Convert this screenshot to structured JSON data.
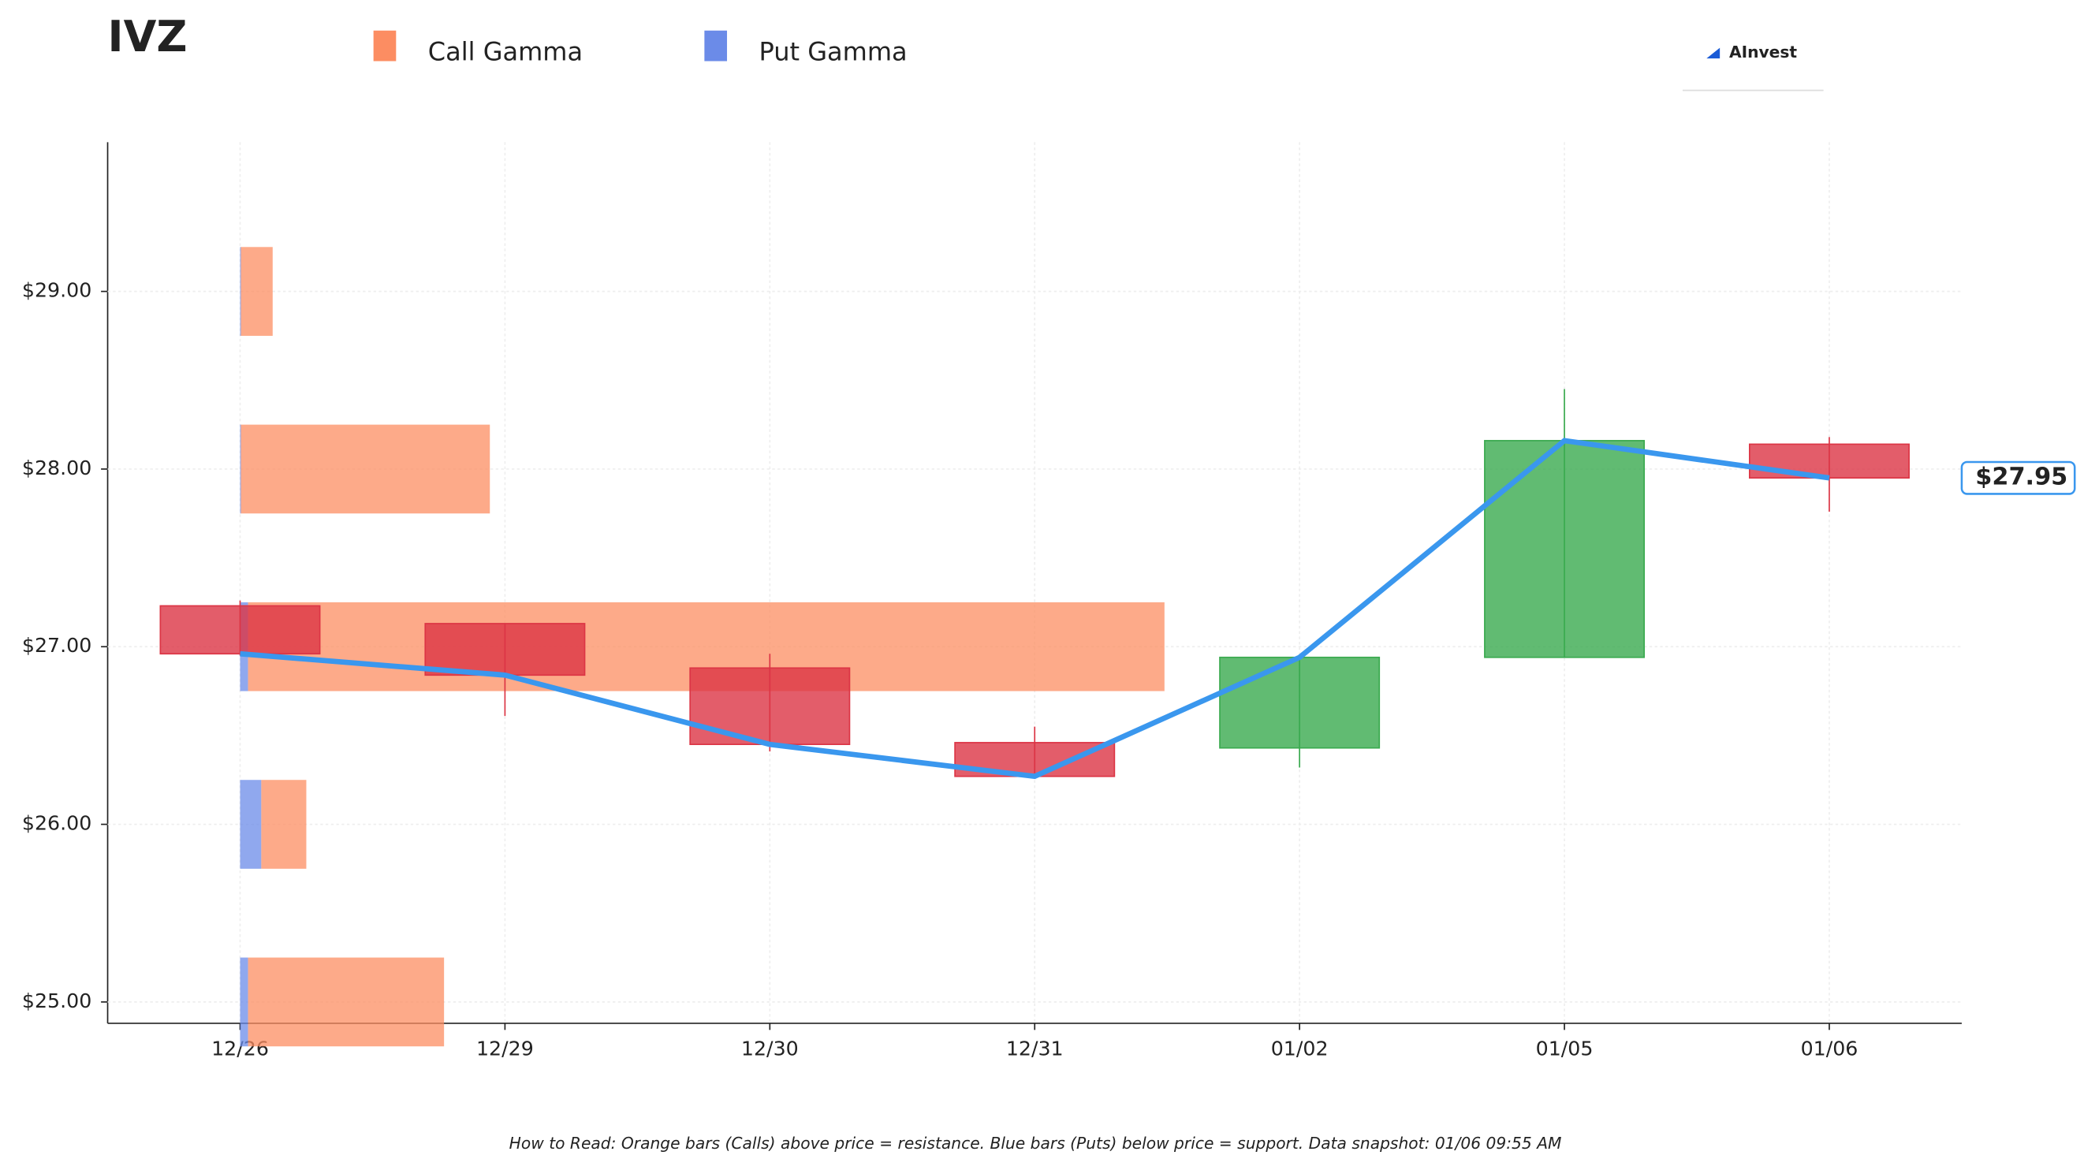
{
  "chart_data": {
    "type": "candlestick",
    "title": "IVZ",
    "brand": "AInvest",
    "note": "How to Read: Orange bars (Calls) above price = resistance. Blue bars (Puts) below price = support. Data snapshot: 01/06 09:55 AM",
    "categories": [
      "12/26",
      "12/29",
      "12/30",
      "12/31",
      "01/02",
      "01/05",
      "01/06"
    ],
    "open": [
      27.23,
      27.13,
      26.88,
      26.46,
      26.43,
      26.94,
      28.14
    ],
    "high": [
      27.26,
      27.13,
      26.96,
      26.55,
      26.94,
      28.45,
      28.18
    ],
    "low": [
      26.95,
      26.61,
      26.41,
      26.27,
      26.32,
      26.94,
      27.76
    ],
    "close": [
      26.96,
      26.84,
      26.45,
      26.27,
      26.94,
      28.16,
      27.95
    ],
    "up_color": "#3aaa4f",
    "down_color": "#dc3545",
    "line": {
      "color": "#3a97ee",
      "values": [
        26.96,
        26.84,
        26.45,
        26.27,
        26.94,
        28.16,
        27.95
      ],
      "value_labels": [
        null,
        null,
        null,
        null,
        null,
        null,
        "$27.95"
      ]
    },
    "gamma": {
      "strikes": [
        25,
        26,
        27,
        28,
        29
      ],
      "series": [
        {
          "name": "Put Gamma",
          "color": "#6b8be8",
          "values": [
            0.03,
            0.08,
            0.03,
            0.003,
            0.003
          ]
        },
        {
          "name": "Call Gamma",
          "color": "#fc8d62",
          "values": [
            0.74,
            0.17,
            3.46,
            0.94,
            0.12
          ]
        }
      ]
    },
    "ylim": [
      24.88,
      29.84
    ],
    "yticks": [
      {
        "value": 25,
        "label": "$25.00"
      },
      {
        "value": 26,
        "label": "$26.00"
      },
      {
        "value": 27,
        "label": "$27.00"
      },
      {
        "value": 28,
        "label": "$28.00"
      },
      {
        "value": 29,
        "label": "$29.00"
      }
    ],
    "grid": true
  }
}
